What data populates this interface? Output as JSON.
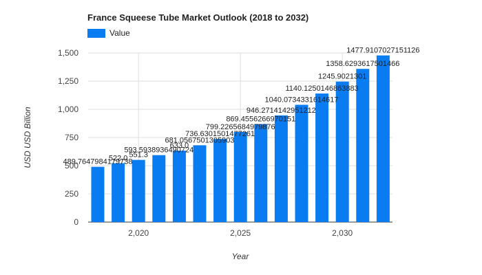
{
  "chart_data": {
    "type": "bar",
    "title": "France Squeese Tube Market Outlook (2018 to 2032)",
    "xlabel": "Year",
    "ylabel": "USD USD Billion",
    "ylim": [
      0,
      1500
    ],
    "y_ticks": [
      0,
      250,
      500,
      750,
      1000,
      1250,
      1500
    ],
    "y_tick_labels": [
      "0",
      "250",
      "500",
      "750",
      "1,000",
      "1,250",
      "1,500"
    ],
    "x_tick_labels": [
      {
        "year": 2020,
        "label": "2,020"
      },
      {
        "year": 2025,
        "label": "2,025"
      },
      {
        "year": 2030,
        "label": "2,030"
      }
    ],
    "grid": true,
    "legend_position": "top-left",
    "series": [
      {
        "name": "Value",
        "color": "#0a7cf2",
        "x": [
          2018,
          2019,
          2020,
          2021,
          2022,
          2023,
          2024,
          2025,
          2026,
          2027,
          2028,
          2029,
          2030,
          2031,
          2032
        ],
        "values": [
          489.7647984179738,
          522.0,
          551.3,
          593.5938936490724,
          633.0,
          681.0567501305903,
          736.6301501477261,
          799.2265684979876,
          869.4556266970151,
          946.2714142951212,
          1040.0734331614617,
          1140.1250146863883,
          1245.9021301,
          1358.6293617501467,
          1477.9107027151126
        ],
        "labels": [
          "489.7647984179738",
          "522.0",
          "551.3",
          "593.5938936490724",
          "633.0",
          "681.0567501305903",
          "736.6301501477261",
          "799.2265684979876",
          "869.4556266970151",
          "946.2714142951212",
          "1040.0734331614617",
          "1140.1250146863883",
          "1245.9021301",
          "1358.6293617501466",
          "1477.9107027151126"
        ]
      }
    ]
  }
}
